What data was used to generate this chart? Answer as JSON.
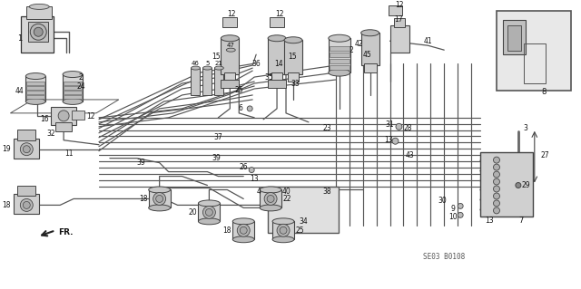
{
  "bg": "#ffffff",
  "lc": "#444444",
  "lc2": "#666666",
  "diagram_code": "SE03 B0108",
  "figsize": [
    6.4,
    3.19
  ],
  "dpi": 100
}
